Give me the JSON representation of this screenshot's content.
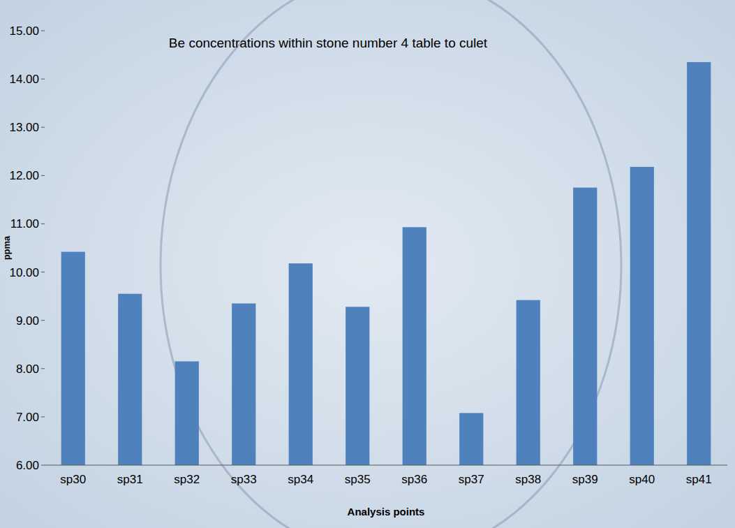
{
  "chart_data": {
    "type": "bar",
    "title": "Be concentrations within stone number 4 table to culet",
    "x_label": "Analysis points",
    "y_label": "ppma",
    "categories": [
      "sp30",
      "sp31",
      "sp32",
      "sp33",
      "sp34",
      "sp35",
      "sp36",
      "sp37",
      "sp38",
      "sp39",
      "sp40",
      "sp41"
    ],
    "values": [
      10.42,
      9.55,
      8.15,
      9.35,
      10.18,
      9.28,
      10.93,
      7.08,
      9.42,
      11.75,
      12.18,
      14.35
    ],
    "color": "#4f81bd",
    "ylim": [
      6,
      15
    ],
    "yticks": [
      {
        "value": 6,
        "label": "6.00"
      },
      {
        "value": 7,
        "label": "7.00"
      },
      {
        "value": 8,
        "label": "8.00"
      },
      {
        "value": 9,
        "label": "9.00"
      },
      {
        "value": 10,
        "label": "10.00"
      },
      {
        "value": 11,
        "label": "11.00"
      },
      {
        "value": 12,
        "label": "12.00"
      },
      {
        "value": 13,
        "label": "13.00"
      },
      {
        "value": 14,
        "label": "14.00"
      },
      {
        "value": 15,
        "label": "15.00"
      }
    ],
    "grid": false
  }
}
